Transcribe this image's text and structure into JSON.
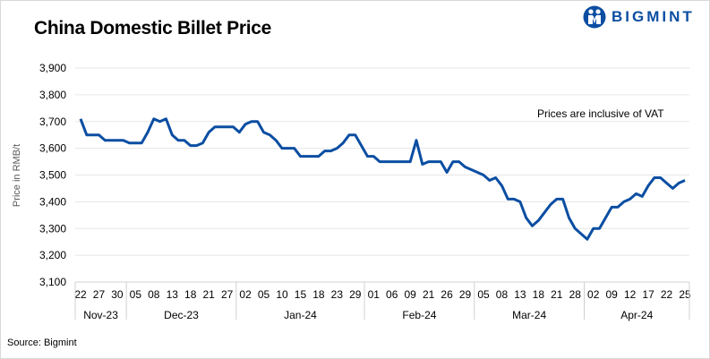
{
  "header": {
    "title": "China Domestic Billet Price",
    "logo_text": "BIGMINT"
  },
  "footer": {
    "source": "Source: Bigmint"
  },
  "chart_data": {
    "type": "line",
    "title": "China Domestic Billet Price",
    "ylabel": "Price in RMB/t",
    "xlabel": "",
    "annotation": "Prices are inclusive of VAT",
    "ylim": [
      3100,
      3900
    ],
    "yticks": [
      "3,100",
      "3,200",
      "3,300",
      "3,400",
      "3,500",
      "3,600",
      "3,700",
      "3,800",
      "3,900"
    ],
    "ytick_values": [
      3100,
      3200,
      3300,
      3400,
      3500,
      3600,
      3700,
      3800,
      3900
    ],
    "grid": "horizontal",
    "line_color": "#0b4ea2",
    "x_tick_labels": [
      "22",
      "27",
      "30",
      "05",
      "08",
      "13",
      "18",
      "21",
      "27",
      "02",
      "05",
      "10",
      "15",
      "18",
      "23",
      "29",
      "01",
      "06",
      "09",
      "21",
      "26",
      "29",
      "05",
      "08",
      "13",
      "18",
      "21",
      "28",
      "02",
      "09",
      "12",
      "17",
      "22",
      "25"
    ],
    "months": [
      {
        "label": "Nov-23",
        "ticks": 3
      },
      {
        "label": "Dec-23",
        "ticks": 6
      },
      {
        "label": "Jan-24",
        "ticks": 7
      },
      {
        "label": "Feb-24",
        "ticks": 6
      },
      {
        "label": "Mar-24",
        "ticks": 6
      },
      {
        "label": "Apr-24",
        "ticks": 6
      }
    ],
    "series": [
      {
        "values": [
          3710,
          3650,
          3650,
          3650,
          3630,
          3630,
          3630,
          3630,
          3620,
          3620,
          3620,
          3660,
          3710,
          3700,
          3710,
          3650,
          3630,
          3630,
          3610,
          3610,
          3620,
          3660,
          3680,
          3680,
          3680,
          3680,
          3660,
          3690,
          3700,
          3700,
          3660,
          3650,
          3630,
          3600,
          3600,
          3600,
          3570,
          3570,
          3570,
          3570,
          3590,
          3590,
          3600,
          3620,
          3650,
          3650,
          3610,
          3570,
          3570,
          3550,
          3550,
          3550,
          3550,
          3550,
          3550,
          3630,
          3540,
          3550,
          3550,
          3550,
          3510,
          3550,
          3550,
          3530,
          3520,
          3510,
          3500,
          3480,
          3490,
          3460,
          3410,
          3410,
          3400,
          3340,
          3310,
          3330,
          3360,
          3390,
          3410,
          3410,
          3340,
          3300,
          3280,
          3260,
          3300,
          3300,
          3340,
          3380,
          3380,
          3400,
          3410,
          3430,
          3420,
          3460,
          3490,
          3490,
          3470,
          3450,
          3470,
          3480
        ]
      }
    ]
  }
}
